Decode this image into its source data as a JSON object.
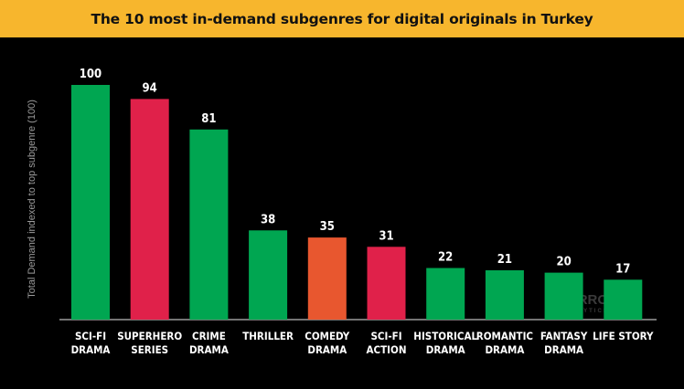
{
  "header": {
    "title": "The 10 most in-demand subgenres for digital originals in Turkey"
  },
  "watermark": {
    "brand": "PARROT",
    "sub": "ANALYTICS"
  },
  "chart_data": {
    "type": "bar",
    "title": "The 10 most in-demand subgenres for digital originals in Turkey",
    "ylabel": "Total Demand indexed to top subgenre (100)",
    "xlabel": "",
    "ylim": [
      0,
      100
    ],
    "grid": false,
    "categories": [
      [
        "SCI-FI",
        "DRAMA"
      ],
      [
        "SUPERHERO",
        "SERIES"
      ],
      [
        "CRIME",
        "DRAMA"
      ],
      [
        "THRILLER"
      ],
      [
        "COMEDY",
        "DRAMA"
      ],
      [
        "SCI-FI",
        "ACTION"
      ],
      [
        "HISTORICAL",
        "DRAMA"
      ],
      [
        "ROMANTIC",
        "DRAMA"
      ],
      [
        "FANTASY",
        "DRAMA"
      ],
      [
        "LIFE STORY"
      ]
    ],
    "values": [
      100,
      94,
      81,
      38,
      35,
      31,
      22,
      21,
      20,
      17
    ],
    "colors": [
      "#00a651",
      "#e0214a",
      "#00a651",
      "#00a651",
      "#e8572f",
      "#e0214a",
      "#00a651",
      "#00a651",
      "#00a651",
      "#00a651"
    ]
  }
}
